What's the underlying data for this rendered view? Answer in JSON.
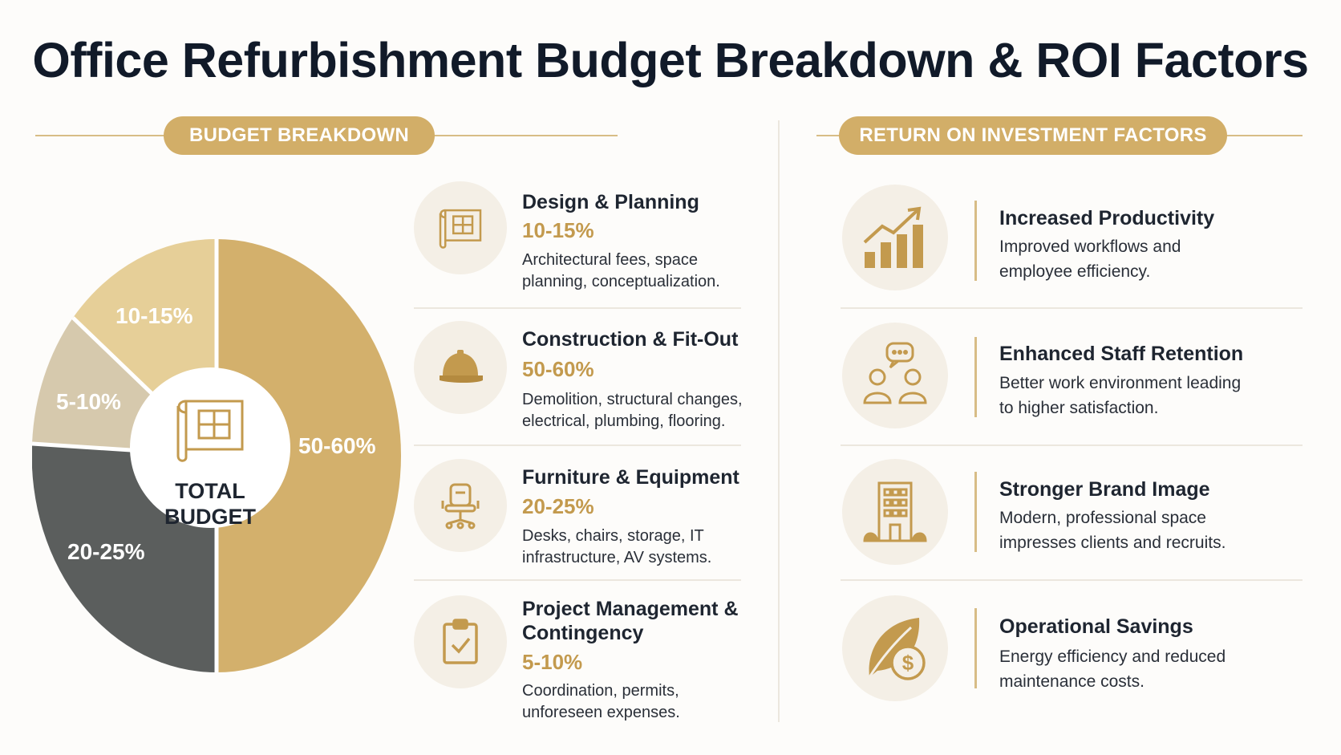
{
  "title": "Office Refurbishment Budget Breakdown & ROI Factors",
  "budget_section": {
    "heading": "BUDGET BREAKDOWN",
    "center_label_line1": "TOTAL",
    "center_label_line2": "BUDGET",
    "segments": [
      {
        "label": "50-60%",
        "value_low": 50,
        "value_high": 60,
        "color": "#d3b06c"
      },
      {
        "label": "20-25%",
        "value_low": 20,
        "value_high": 25,
        "color": "#5b5e5d"
      },
      {
        "label": "5-10%",
        "value_low": 5,
        "value_high": 10,
        "color": "#d6c9ad"
      },
      {
        "label": "10-15%",
        "value_low": 10,
        "value_high": 15,
        "color": "#e6cf98"
      }
    ],
    "items": [
      {
        "title": "Design & Planning",
        "pct": "10-15%",
        "desc_line1": "Architectural fees, space",
        "desc_line2": "planning, conceptualization.",
        "icon": "blueprint-icon"
      },
      {
        "title": "Construction & Fit-Out",
        "pct": "50-60%",
        "desc_line1": "Demolition, structural changes,",
        "desc_line2": "electrical, plumbing, flooring.",
        "icon": "hard-hat-icon"
      },
      {
        "title": "Furniture & Equipment",
        "pct": "20-25%",
        "desc_line1": "Desks, chairs, storage, IT",
        "desc_line2": "infrastructure, AV systems.",
        "icon": "office-chair-icon"
      },
      {
        "title_line1": "Project Management &",
        "title_line2": "Contingency",
        "pct": "5-10%",
        "desc_line1": "Coordination, permits,",
        "desc_line2": "unforeseen expenses.",
        "icon": "clipboard-check-icon"
      }
    ]
  },
  "roi_section": {
    "heading": "RETURN ON INVESTMENT FACTORS",
    "items": [
      {
        "title": "Increased Productivity",
        "desc_line1": "Improved workflows and",
        "desc_line2": "employee efficiency.",
        "icon": "growth-chart-icon"
      },
      {
        "title": "Enhanced Staff Retention",
        "desc_line1": "Better work environment leading",
        "desc_line2": "to higher satisfaction.",
        "icon": "people-chat-icon"
      },
      {
        "title": "Stronger Brand Image",
        "desc_line1": "Modern, professional space",
        "desc_line2": "impresses clients and recruits.",
        "icon": "office-building-icon"
      },
      {
        "title": "Operational Savings",
        "desc_line1": "Energy efficiency and reduced",
        "desc_line2": "maintenance costs.",
        "icon": "leaf-dollar-icon"
      }
    ]
  },
  "colors": {
    "accent": "#d2ae68",
    "accent_text": "#c39a4e",
    "dark": "#5b5e5d",
    "title": "#111a29"
  }
}
